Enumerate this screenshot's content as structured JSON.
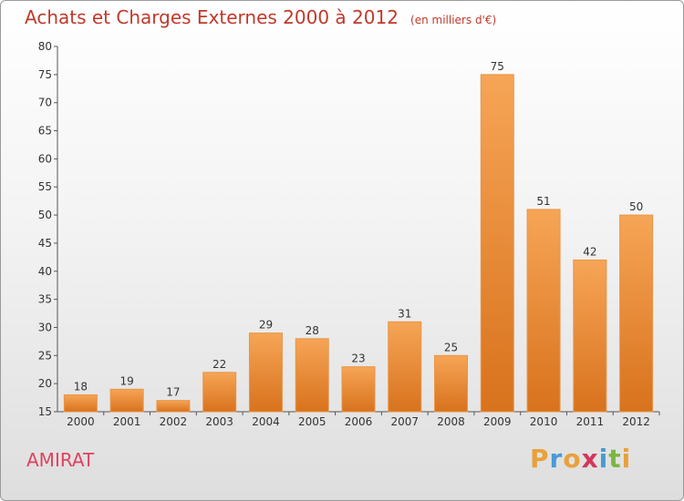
{
  "header": {
    "title": "Achats et Charges Externes 2000 à 2012",
    "subtitle": "(en milliers d'€)"
  },
  "commune": "AMIRAT",
  "logo": {
    "letters": [
      "P",
      "r",
      "o",
      "x",
      "i",
      "t",
      "i"
    ],
    "colors": [
      "#e8a13a",
      "#4a9ad4",
      "#e8a13a",
      "#d6355b",
      "#4a9ad4",
      "#7cb740",
      "#e8a13a"
    ]
  },
  "colors": {
    "title": "#c0392b",
    "bar_light": "#f6a556",
    "bar_dark": "#d8721d",
    "commune": "#e0425e"
  },
  "chart_data": {
    "type": "bar",
    "title": "Achats et Charges Externes 2000 à 2012",
    "subtitle": "(en milliers d'€)",
    "categories": [
      "2000",
      "2001",
      "2002",
      "2003",
      "2004",
      "2005",
      "2006",
      "2007",
      "2008",
      "2009",
      "2010",
      "2011",
      "2012"
    ],
    "values": [
      18,
      19,
      17,
      22,
      29,
      28,
      23,
      31,
      25,
      75,
      51,
      42,
      50
    ],
    "ylim": [
      15,
      80
    ],
    "yticks": [
      15,
      20,
      25,
      30,
      35,
      40,
      45,
      50,
      55,
      60,
      65,
      70,
      75,
      80
    ],
    "xlabel": "",
    "ylabel": "",
    "grid": false
  }
}
